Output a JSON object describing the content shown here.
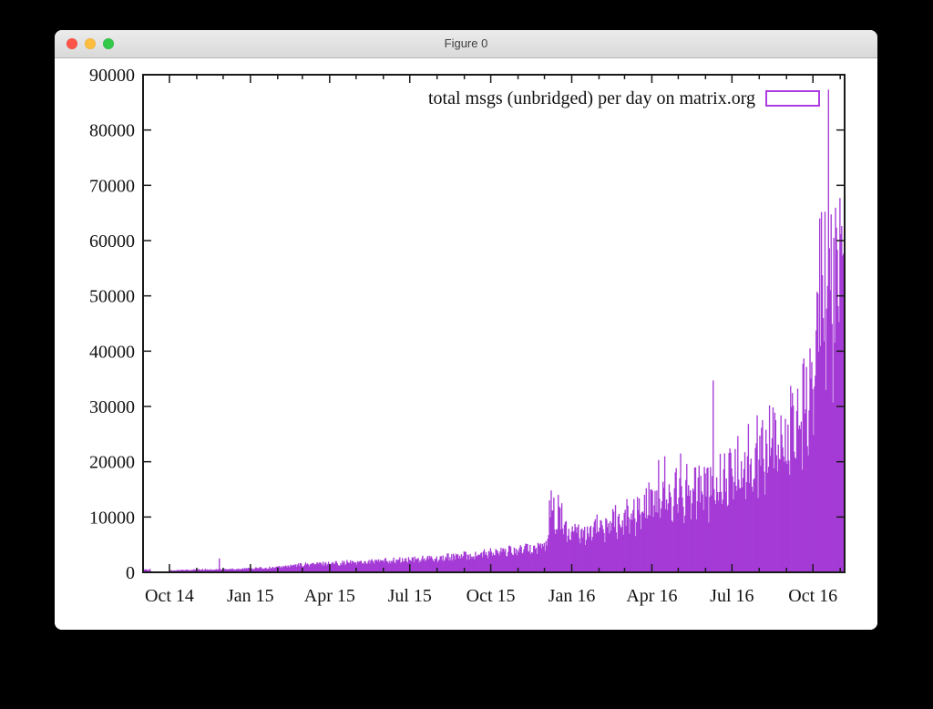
{
  "window": {
    "title": "Figure 0",
    "controls": {
      "close_color": "#fc5449",
      "minimize_color": "#fdbd3e",
      "maximize_color": "#34c84a"
    }
  },
  "chart_data": {
    "type": "bar",
    "title": "",
    "legend": {
      "label": "total msgs (unbridged) per day on matrix.org",
      "position": "top-right"
    },
    "colors": {
      "bars": "#a53ad6",
      "legend_box_border": "#ae3ce3",
      "axis": "#1a1a1a",
      "background": "#ffffff"
    },
    "x_axis": {
      "start_date": "2014-09-01",
      "end_date": "2016-11-06",
      "minor_ticks": "monthly",
      "major_tick_labels": [
        {
          "date": "2014-10-01",
          "label": "Oct 14"
        },
        {
          "date": "2015-01-01",
          "label": "Jan 15"
        },
        {
          "date": "2015-04-01",
          "label": "Apr 15"
        },
        {
          "date": "2015-07-01",
          "label": "Jul 15"
        },
        {
          "date": "2015-10-01",
          "label": "Oct 15"
        },
        {
          "date": "2016-01-01",
          "label": "Jan 16"
        },
        {
          "date": "2016-04-01",
          "label": "Apr 16"
        },
        {
          "date": "2016-07-01",
          "label": "Jul 16"
        },
        {
          "date": "2016-10-01",
          "label": "Oct 16"
        }
      ]
    },
    "y_axis": {
      "min": 0,
      "max": 90000,
      "tick_step": 10000,
      "tick_labels": [
        "0",
        "10000",
        "20000",
        "30000",
        "40000",
        "50000",
        "60000",
        "70000",
        "80000",
        "90000"
      ],
      "grid": false
    },
    "series": {
      "name": "total msgs (unbridged) per day on matrix.org",
      "unit": "messages per day",
      "envelope_keyframes_day_value": [
        [
          0,
          450
        ],
        [
          7,
          520
        ],
        [
          9,
          60
        ],
        [
          28,
          130
        ],
        [
          30,
          330
        ],
        [
          60,
          470
        ],
        [
          90,
          560
        ],
        [
          120,
          700
        ],
        [
          150,
          880
        ],
        [
          180,
          1400
        ],
        [
          210,
          1650
        ],
        [
          240,
          1850
        ],
        [
          270,
          2050
        ],
        [
          300,
          2250
        ],
        [
          330,
          2550
        ],
        [
          360,
          2950
        ],
        [
          395,
          3500
        ],
        [
          425,
          4000
        ],
        [
          455,
          4900
        ],
        [
          458,
          5100
        ],
        [
          462,
          9500
        ],
        [
          470,
          10500
        ],
        [
          478,
          8200
        ],
        [
          487,
          7300
        ],
        [
          518,
          8700
        ],
        [
          547,
          10600
        ],
        [
          578,
          14000
        ],
        [
          608,
          15600
        ],
        [
          624,
          16500
        ],
        [
          639,
          15400
        ],
        [
          669,
          19000
        ],
        [
          700,
          23500
        ],
        [
          731,
          26000
        ],
        [
          745,
          30000
        ],
        [
          755,
          34000
        ],
        [
          761,
          40000
        ],
        [
          766,
          48000
        ],
        [
          771,
          55000
        ],
        [
          776,
          57000
        ],
        [
          780,
          50000
        ],
        [
          783,
          56000
        ],
        [
          788,
          54000
        ],
        [
          797,
          53500
        ]
      ],
      "notable_spikes_day_value": [
        [
          86,
          2500
        ],
        [
          461,
          13000
        ],
        [
          463,
          14800
        ],
        [
          466,
          13500
        ],
        [
          471,
          14000
        ],
        [
          475,
          12500
        ],
        [
          585,
          20300
        ],
        [
          592,
          21000
        ],
        [
          610,
          21500
        ],
        [
          647,
          34700
        ],
        [
          768,
          64000
        ],
        [
          778,
          87300
        ]
      ],
      "weekend_dip_fraction": 0.26,
      "daily_noise_fraction": 0.26
    }
  }
}
